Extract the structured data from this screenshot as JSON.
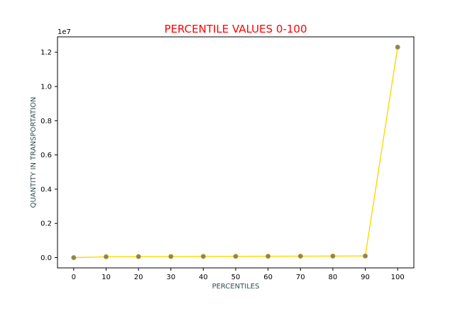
{
  "chart_data": {
    "type": "line",
    "title": "PERCENTILE VALUES 0-100",
    "xlabel": "PERCENTILES",
    "ylabel": "QUANTITY IN TRANSPORTATION",
    "y_offset_label": "1e7",
    "x": [
      0,
      10,
      20,
      30,
      40,
      50,
      60,
      70,
      80,
      90,
      100
    ],
    "series": [
      {
        "values": [
          0,
          50000,
          60000,
          65000,
          70000,
          75000,
          80000,
          85000,
          90000,
          95000,
          12300000
        ]
      }
    ],
    "xlim": [
      -5,
      105
    ],
    "ylim": [
      -600000,
      12900000
    ],
    "x_ticks": [
      0,
      10,
      20,
      30,
      40,
      50,
      60,
      70,
      80,
      90,
      100
    ],
    "x_tick_labels": [
      "0",
      "10",
      "20",
      "30",
      "40",
      "50",
      "60",
      "70",
      "80",
      "90",
      "100"
    ],
    "y_ticks": [
      0,
      2000000,
      4000000,
      6000000,
      8000000,
      10000000,
      12000000
    ],
    "y_tick_labels": [
      "0.0",
      "0.2",
      "0.4",
      "0.6",
      "0.8",
      "1.0",
      "1.2"
    ],
    "grid": false,
    "colors": {
      "title": "#ff0000",
      "axis_label": "#2f4f4f",
      "line": "#ffd700",
      "marker_fill": "#808080",
      "marker_edge": "#b8a000",
      "axes": "#000000"
    }
  }
}
